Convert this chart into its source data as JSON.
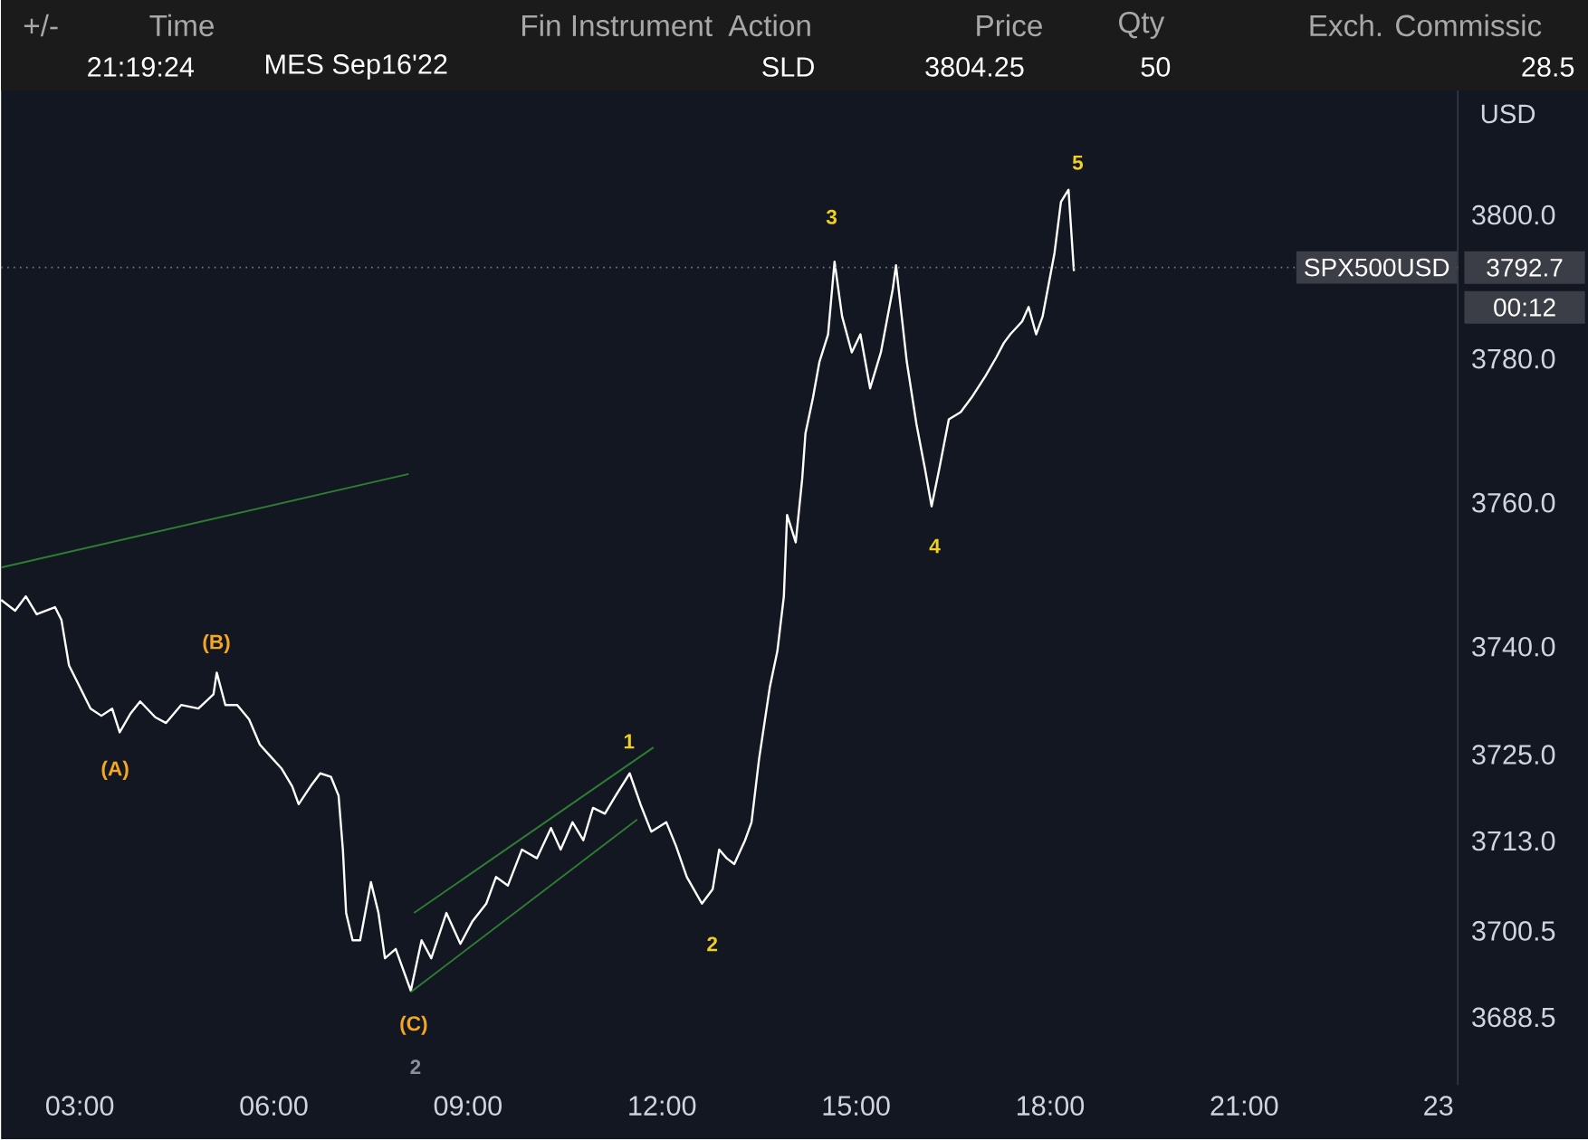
{
  "chart_data": {
    "type": "line",
    "xlim": [
      "2022-09-22T01:47",
      "2022-09-23T00:18"
    ],
    "ylim": [
      3679.1,
      3817.3
    ],
    "xticks": [
      {
        "value": "2022-09-22T03:00",
        "label": "03:00"
      },
      {
        "value": "2022-09-22T06:00",
        "label": "06:00"
      },
      {
        "value": "2022-09-22T09:00",
        "label": "09:00"
      },
      {
        "value": "2022-09-22T12:00",
        "label": "12:00"
      },
      {
        "value": "2022-09-22T15:00",
        "label": "15:00"
      },
      {
        "value": "2022-09-22T18:00",
        "label": "18:00"
      },
      {
        "value": "2022-09-22T21:00",
        "label": "21:00"
      },
      {
        "value": "2022-09-23",
        "label": "23"
      }
    ],
    "yticks": [
      3688.5,
      3700.5,
      {
        "value": 3713,
        "label": "3713.0"
      },
      {
        "value": 3725,
        "label": "3725.0"
      },
      {
        "value": 3740,
        "label": "3740.0"
      },
      {
        "value": 3760,
        "label": "3760.0"
      },
      {
        "value": 3780,
        "label": "3780.0"
      },
      {
        "value": 3800,
        "label": "3800.0"
      }
    ],
    "series": [
      {
        "color": "#ffffff",
        "x": [
          "2022-09-22T01:47",
          "2022-09-22T02:00",
          "2022-09-22T02:10",
          "2022-09-22T02:20",
          "2022-09-22T02:37",
          "2022-09-22T02:43",
          "2022-09-22T02:50",
          "2022-09-22T03:00",
          "2022-09-22T03:10",
          "2022-09-22T03:20",
          "2022-09-22T03:30",
          "2022-09-22T03:37",
          "2022-09-22T03:47",
          "2022-09-22T03:56",
          "2022-09-22T04:10",
          "2022-09-22T04:20",
          "2022-09-22T04:34",
          "2022-09-22T04:50",
          "2022-09-22T05:04",
          "2022-09-22T05:07",
          "2022-09-22T05:15",
          "2022-09-22T05:26",
          "2022-09-22T05:37",
          "2022-09-22T05:47",
          "2022-09-22T05:56",
          "2022-09-22T06:07",
          "2022-09-22T06:17",
          "2022-09-22T06:23",
          "2022-09-22T06:34",
          "2022-09-22T06:43",
          "2022-09-22T06:53",
          "2022-09-22T07:00",
          "2022-09-22T07:04",
          "2022-09-22T07:07",
          "2022-09-22T07:13",
          "2022-09-22T07:20",
          "2022-09-22T07:30",
          "2022-09-22T07:37",
          "2022-09-22T07:43",
          "2022-09-22T07:53",
          "2022-09-22T08:07",
          "2022-09-22T08:17",
          "2022-09-22T08:26",
          "2022-09-22T08:40",
          "2022-09-22T08:53",
          "2022-09-22T09:04",
          "2022-09-22T09:17",
          "2022-09-22T09:26",
          "2022-09-22T09:37",
          "2022-09-22T09:50",
          "2022-09-22T10:04",
          "2022-09-22T10:17",
          "2022-09-22T10:26",
          "2022-09-22T10:37",
          "2022-09-22T10:47",
          "2022-09-22T10:56",
          "2022-09-22T11:07",
          "2022-09-22T11:17",
          "2022-09-22T11:30",
          "2022-09-22T11:40",
          "2022-09-22T11:50",
          "2022-09-22T12:04",
          "2022-09-22T12:13",
          "2022-09-22T12:23",
          "2022-09-22T12:37",
          "2022-09-22T12:47",
          "2022-09-22T12:53",
          "2022-09-22T13:00",
          "2022-09-22T13:07",
          "2022-09-22T13:17",
          "2022-09-22T13:23",
          "2022-09-22T13:30",
          "2022-09-22T13:40",
          "2022-09-22T13:47",
          "2022-09-22T13:53",
          "2022-09-22T13:56",
          "2022-09-22T14:04",
          "2022-09-22T14:10",
          "2022-09-22T14:13",
          "2022-09-22T14:20",
          "2022-09-22T14:26",
          "2022-09-22T14:34",
          "2022-09-22T14:40",
          "2022-09-22T14:47",
          "2022-09-22T14:56",
          "2022-09-22T15:04",
          "2022-09-22T15:13",
          "2022-09-22T15:23",
          "2022-09-22T15:34",
          "2022-09-22T15:37",
          "2022-09-22T15:47",
          "2022-09-22T15:56",
          "2022-09-22T16:04",
          "2022-09-22T16:10",
          "2022-09-22T16:17",
          "2022-09-22T16:26",
          "2022-09-22T16:37",
          "2022-09-22T16:47",
          "2022-09-22T17:00",
          "2022-09-22T17:10",
          "2022-09-22T17:17",
          "2022-09-22T17:23",
          "2022-09-22T17:34",
          "2022-09-22T17:40",
          "2022-09-22T17:47",
          "2022-09-22T17:53",
          "2022-09-22T18:04",
          "2022-09-22T18:10",
          "2022-09-22T18:17",
          "2022-09-22T18:22"
        ],
        "values": [
          3746.5,
          3745,
          3747,
          3744.5,
          3745.5,
          3743.7,
          3737.4,
          3734.4,
          3731.4,
          3730.4,
          3731.4,
          3728.1,
          3730.7,
          3732.4,
          3730.2,
          3729.4,
          3731.9,
          3731.4,
          3733.4,
          3736.4,
          3731.9,
          3731.9,
          3729.9,
          3726.4,
          3724.9,
          3723.1,
          3720.6,
          3718.1,
          3720.6,
          3722.4,
          3721.9,
          3719.3,
          3711.8,
          3703,
          3699.2,
          3699.2,
          3707.3,
          3703,
          3696.7,
          3698,
          3692.2,
          3699.2,
          3696.7,
          3703,
          3698.7,
          3701.8,
          3704.3,
          3708,
          3706.8,
          3711.8,
          3710.6,
          3714.8,
          3711.8,
          3715.6,
          3713.1,
          3717.6,
          3716.8,
          3719.3,
          3722.4,
          3718.1,
          3714.3,
          3715.6,
          3712.3,
          3708,
          3704.3,
          3706.3,
          3711.8,
          3710.6,
          3709.8,
          3713.1,
          3715.6,
          3724.4,
          3734.4,
          3739.4,
          3747,
          3758.3,
          3754.5,
          3763.3,
          3769.6,
          3774.6,
          3779.6,
          3783.4,
          3793.5,
          3785.9,
          3780.9,
          3783.4,
          3775.9,
          3780.9,
          3789.7,
          3793,
          3779.6,
          3770.9,
          3764.6,
          3759.5,
          3764.6,
          3771.6,
          3772.6,
          3774.6,
          3777.6,
          3780.2,
          3782.2,
          3783.4,
          3785.2,
          3787.2,
          3783.4,
          3785.9,
          3794.7,
          3801.8,
          3803.5,
          3792.2
        ]
      },
      {
        "color": "#2e7d32",
        "type": "line",
        "x": [
          "2022-09-22T01:47",
          "2022-09-22T08:05"
        ],
        "values": [
          3751,
          3764
        ]
      },
      {
        "color": "#2e7d32",
        "type": "line",
        "x": [
          "2022-09-22T08:10",
          "2022-09-22T11:52"
        ],
        "values": [
          3703,
          3726
        ]
      },
      {
        "color": "#2e7d32",
        "type": "line",
        "x": [
          "2022-09-22T08:07",
          "2022-09-22T11:37"
        ],
        "values": [
          3692,
          3716
        ]
      }
    ],
    "ref_lines": [
      {
        "axis": "y",
        "value": 3792.7,
        "label": "SPX500USD",
        "color": "#787b86",
        "line_style": "dotted"
      }
    ],
    "annotations": [
      "+/-",
      "Time",
      "Fin Instrument",
      "Action",
      "Price",
      "Qty",
      "Exch. Commissic",
      "21:19:24",
      "MES Sep16'22",
      "SLD",
      "3804.25",
      "50",
      "28.5",
      "USD",
      "3792.7",
      "00:12",
      "(A)",
      "(B)",
      "(C)",
      "2",
      "1",
      "2",
      "3",
      "4",
      "5"
    ]
  }
}
